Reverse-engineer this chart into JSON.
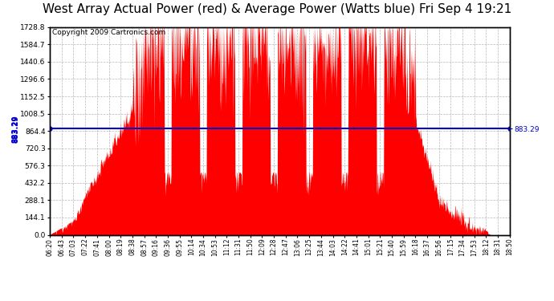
{
  "title": "West Array Actual Power (red) & Average Power (Watts blue) Fri Sep 4 19:21",
  "copyright": "Copyright 2009 Cartronics.com",
  "average_power": 883.29,
  "y_max": 1728.8,
  "y_ticks": [
    0.0,
    144.1,
    288.1,
    432.2,
    576.3,
    720.3,
    864.4,
    1008.5,
    1152.5,
    1296.6,
    1440.6,
    1584.7,
    1728.8
  ],
  "fill_color": "#ff0000",
  "line_color": "#0000cc",
  "background_color": "#ffffff",
  "grid_color": "#888888",
  "title_fontsize": 11,
  "copyright_fontsize": 6.5,
  "x_labels": [
    "06:20",
    "06:43",
    "07:03",
    "07:22",
    "07:41",
    "08:00",
    "08:19",
    "08:38",
    "08:57",
    "09:16",
    "09:36",
    "09:55",
    "10:14",
    "10:34",
    "10:53",
    "11:12",
    "11:31",
    "11:50",
    "12:09",
    "12:28",
    "12:47",
    "13:06",
    "13:25",
    "13:44",
    "14:03",
    "14:22",
    "14:41",
    "15:01",
    "15:21",
    "15:40",
    "15:59",
    "16:18",
    "16:37",
    "16:56",
    "17:15",
    "17:34",
    "17:53",
    "18:12",
    "18:31",
    "18:50"
  ]
}
